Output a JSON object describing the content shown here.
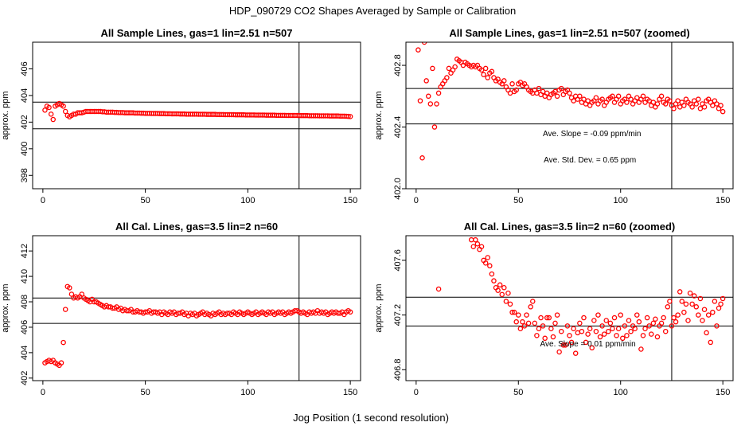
{
  "figure": {
    "title": "HDP_090729  CO2 Shapes Averaged by Sample or Calibration",
    "xlabel": "Jog Position (1 second resolution)"
  },
  "colors": {
    "points": "#ff0000",
    "lines": "#000000"
  },
  "chart_data": [
    {
      "type": "scatter",
      "title": "All Sample Lines, gas=1 lin=2.51 n=507",
      "xlabel": "",
      "ylabel": "approx. ppm",
      "xlim": [
        -5,
        155
      ],
      "ylim": [
        397,
        408
      ],
      "xticks": [
        0,
        50,
        100,
        150
      ],
      "yticks": [
        398,
        400,
        402,
        404,
        406
      ],
      "hlines": [
        403.5,
        401.5
      ],
      "vline": 125,
      "annotations": [],
      "series": [
        {
          "x_start": 1,
          "x_step": 1,
          "y": [
            402.9,
            403.2,
            403.1,
            402.6,
            402.2,
            403.2,
            403.3,
            403.4,
            403.3,
            403.2,
            402.8,
            402.5,
            402.4,
            402.5,
            402.6,
            402.6,
            402.7,
            402.7,
            402.7,
            402.75,
            402.8,
            402.8,
            402.8,
            402.8,
            402.8,
            402.8,
            402.8,
            402.8,
            402.78,
            402.78,
            402.75,
            402.75,
            402.75,
            402.75,
            402.73,
            402.73,
            402.72,
            402.72,
            402.72,
            402.7,
            402.7,
            402.7,
            402.7,
            402.7,
            402.68,
            402.68,
            402.68,
            402.67,
            402.67,
            402.66,
            402.66,
            402.66,
            402.65,
            402.65,
            402.65,
            402.65,
            402.64,
            402.64,
            402.64,
            402.63,
            402.63,
            402.63,
            402.62,
            402.62,
            402.62,
            402.62,
            402.61,
            402.61,
            402.61,
            402.6,
            402.6,
            402.6,
            402.6,
            402.6,
            402.6,
            402.59,
            402.59,
            402.59,
            402.59,
            402.58,
            402.58,
            402.58,
            402.58,
            402.58,
            402.57,
            402.57,
            402.57,
            402.57,
            402.56,
            402.56,
            402.56,
            402.56,
            402.56,
            402.55,
            402.55,
            402.55,
            402.55,
            402.55,
            402.54,
            402.54,
            402.54,
            402.54,
            402.54,
            402.53,
            402.53,
            402.53,
            402.53,
            402.53,
            402.52,
            402.52,
            402.52,
            402.52,
            402.52,
            402.51,
            402.51,
            402.51,
            402.51,
            402.51,
            402.5,
            402.5,
            402.5,
            402.5,
            402.5,
            402.5,
            402.49,
            402.49,
            402.49,
            402.49,
            402.49,
            402.48,
            402.48,
            402.48,
            402.48,
            402.48,
            402.47,
            402.47,
            402.47,
            402.47,
            402.47,
            402.46,
            402.46,
            402.46,
            402.46,
            402.46,
            402.45,
            402.45,
            402.45,
            402.44,
            402.43,
            402.42
          ]
        }
      ]
    },
    {
      "type": "scatter",
      "title": "All Sample Lines, gas=1 lin=2.51 n=507 (zoomed)",
      "xlabel": "",
      "ylabel": "approx. ppm",
      "xlim": [
        -5,
        155
      ],
      "ylim": [
        402.0,
        402.95
      ],
      "xticks": [
        0,
        50,
        100,
        150
      ],
      "yticks": [
        402.0,
        402.4,
        402.8
      ],
      "hlines": [
        402.65,
        402.42
      ],
      "vline": 125,
      "annotations": [
        {
          "text": "Ave. Slope =  -0.09  ppm/min",
          "x": 86,
          "y": 402.34
        },
        {
          "text": "Ave. Std. Dev. =  0.65  ppm",
          "x": 85,
          "y": 402.17
        }
      ],
      "series": [
        {
          "x_start": 1,
          "x_step": 1,
          "y": [
            402.9,
            402.57,
            402.2,
            402.95,
            402.7,
            402.6,
            402.55,
            402.78,
            402.4,
            402.55,
            402.62,
            402.66,
            402.68,
            402.7,
            402.72,
            402.78,
            402.75,
            402.77,
            402.79,
            402.84,
            402.83,
            402.82,
            402.8,
            402.82,
            402.81,
            402.8,
            402.79,
            402.8,
            402.79,
            402.8,
            402.78,
            402.77,
            402.74,
            402.78,
            402.72,
            402.75,
            402.76,
            402.72,
            402.7,
            402.71,
            402.69,
            402.68,
            402.7,
            402.66,
            402.64,
            402.62,
            402.68,
            402.63,
            402.64,
            402.68,
            402.69,
            402.67,
            402.68,
            402.66,
            402.64,
            402.63,
            402.62,
            402.64,
            402.62,
            402.65,
            402.61,
            402.63,
            402.6,
            402.62,
            402.59,
            402.61,
            402.62,
            402.63,
            402.6,
            402.64,
            402.65,
            402.61,
            402.63,
            402.64,
            402.62,
            402.59,
            402.57,
            402.6,
            402.58,
            402.6,
            402.56,
            402.58,
            402.55,
            402.57,
            402.54,
            402.56,
            402.57,
            402.59,
            402.55,
            402.57,
            402.58,
            402.54,
            402.56,
            402.58,
            402.59,
            402.6,
            402.56,
            402.58,
            402.6,
            402.55,
            402.57,
            402.58,
            402.56,
            402.6,
            402.58,
            402.55,
            402.57,
            402.59,
            402.56,
            402.58,
            402.6,
            402.56,
            402.58,
            402.57,
            402.54,
            402.56,
            402.53,
            402.55,
            402.58,
            402.6,
            402.56,
            402.55,
            402.58,
            402.57,
            402.54,
            402.52,
            402.55,
            402.57,
            402.53,
            402.56,
            402.54,
            402.58,
            402.56,
            402.55,
            402.53,
            402.57,
            402.55,
            402.58,
            402.52,
            402.55,
            402.53,
            402.57,
            402.58,
            402.56,
            402.54,
            402.57,
            402.55,
            402.52,
            402.54,
            402.5
          ]
        }
      ]
    },
    {
      "type": "scatter",
      "title": "All Cal. Lines, gas=3.5 lin=2 n=60",
      "xlabel": "",
      "ylabel": "approx. ppm",
      "xlim": [
        -5,
        155
      ],
      "ylim": [
        401.8,
        413.2
      ],
      "xticks": [
        0,
        50,
        100,
        150
      ],
      "yticks": [
        402,
        404,
        406,
        408,
        410,
        412
      ],
      "hlines": [
        408.3,
        406.3
      ],
      "vline": 125,
      "annotations": [],
      "series": [
        {
          "x_start": 1,
          "x_step": 1,
          "y": [
            403.2,
            403.3,
            403.4,
            403.3,
            403.4,
            403.2,
            403.1,
            403.0,
            403.2,
            404.8,
            407.4,
            409.2,
            409.1,
            408.6,
            408.3,
            408.4,
            408.3,
            408.4,
            408.6,
            408.3,
            408.2,
            408.1,
            408.0,
            408.2,
            408.0,
            408.0,
            407.9,
            407.8,
            407.7,
            407.6,
            407.7,
            407.6,
            407.6,
            407.5,
            407.5,
            407.6,
            407.4,
            407.5,
            407.3,
            407.4,
            407.3,
            407.3,
            407.4,
            407.2,
            407.2,
            407.3,
            407.2,
            407.2,
            407.1,
            407.2,
            407.2,
            407.3,
            407.1,
            407.2,
            407.2,
            407.1,
            407.2,
            407.0,
            407.2,
            407.1,
            407.0,
            407.2,
            407.1,
            407.2,
            407.0,
            407.1,
            407.1,
            407.2,
            407.0,
            407.1,
            406.9,
            407.1,
            407.0,
            407.1,
            406.9,
            407.0,
            407.1,
            407.2,
            407.0,
            407.1,
            407.0,
            406.9,
            407.1,
            407.0,
            407.1,
            407.2,
            407.0,
            407.1,
            407.0,
            407.1,
            407.1,
            407.0,
            407.2,
            407.1,
            407.0,
            407.2,
            407.1,
            407.0,
            407.1,
            407.2,
            407.1,
            407.0,
            407.1,
            407.2,
            407.0,
            407.1,
            407.2,
            407.1,
            407.0,
            407.2,
            407.1,
            407.2,
            407.0,
            407.1,
            407.2,
            407.1,
            407.2,
            407.0,
            407.1,
            407.2,
            407.1,
            407.2,
            407.3,
            407.3,
            407.2,
            407.1,
            407.2,
            407.1,
            407.0,
            407.2,
            407.1,
            407.2,
            407.1,
            407.3,
            407.1,
            407.2,
            407.1,
            407.2,
            407.0,
            407.1,
            407.2,
            407.1,
            407.2,
            407.1,
            407.1,
            407.2,
            407.0,
            407.2,
            407.3,
            407.2
          ]
        }
      ]
    },
    {
      "type": "scatter",
      "title": "All Cal. Lines, gas=3.5 lin=2 n=60 (zoomed)",
      "xlabel": "",
      "ylabel": "approx. ppm",
      "xlim": [
        -5,
        155
      ],
      "ylim": [
        406.72,
        407.78
      ],
      "xticks": [
        0,
        50,
        100,
        150
      ],
      "yticks": [
        406.8,
        407.2,
        407.6
      ],
      "hlines": [
        407.33,
        407.12
      ],
      "vline": 125,
      "annotations": [
        {
          "text": "Ave. Slope =  0.01  ppm/min",
          "x": 84,
          "y": 406.97
        }
      ],
      "points": [
        [
          11,
          407.39
        ],
        [
          27,
          407.75
        ],
        [
          28,
          407.7
        ],
        [
          29,
          407.75
        ],
        [
          30,
          407.72
        ],
        [
          31,
          407.68
        ],
        [
          32,
          407.7
        ],
        [
          33,
          407.6
        ],
        [
          34,
          407.58
        ],
        [
          35,
          407.62
        ],
        [
          36,
          407.56
        ],
        [
          37,
          407.5
        ],
        [
          38,
          407.45
        ],
        [
          39,
          407.4
        ],
        [
          40,
          407.38
        ],
        [
          41,
          407.42
        ],
        [
          42,
          407.35
        ],
        [
          43,
          407.4
        ],
        [
          44,
          407.3
        ],
        [
          45,
          407.36
        ],
        [
          46,
          407.28
        ],
        [
          47,
          407.22
        ],
        [
          48,
          407.22
        ],
        [
          49,
          407.15
        ],
        [
          50,
          407.2
        ],
        [
          51,
          407.1
        ],
        [
          52,
          407.15
        ],
        [
          53,
          407.12
        ],
        [
          54,
          407.2
        ],
        [
          55,
          407.14
        ],
        [
          56,
          407.26
        ],
        [
          57,
          407.3
        ],
        [
          58,
          407.14
        ],
        [
          59,
          407.05
        ],
        [
          60,
          407.1
        ],
        [
          61,
          407.18
        ],
        [
          62,
          407.12
        ],
        [
          63,
          407.03
        ],
        [
          64,
          407.18
        ],
        [
          65,
          407.18
        ],
        [
          66,
          407.1
        ],
        [
          67,
          407.04
        ],
        [
          68,
          407.14
        ],
        [
          69,
          407.2
        ],
        [
          70,
          406.93
        ],
        [
          71,
          407.08
        ],
        [
          72,
          406.98
        ],
        [
          73,
          406.98
        ],
        [
          74,
          407.12
        ],
        [
          75,
          407.05
        ],
        [
          76,
          407.0
        ],
        [
          77,
          407.1
        ],
        [
          78,
          406.92
        ],
        [
          79,
          407.07
        ],
        [
          80,
          407.14
        ],
        [
          81,
          407.08
        ],
        [
          82,
          407.18
        ],
        [
          83,
          407.0
        ],
        [
          84,
          407.06
        ],
        [
          85,
          407.1
        ],
        [
          86,
          406.96
        ],
        [
          87,
          407.16
        ],
        [
          88,
          407.08
        ],
        [
          89,
          407.2
        ],
        [
          90,
          407.04
        ],
        [
          91,
          407.12
        ],
        [
          92,
          407.06
        ],
        [
          93,
          407.16
        ],
        [
          94,
          407.08
        ],
        [
          95,
          407.14
        ],
        [
          96,
          407.1
        ],
        [
          97,
          407.18
        ],
        [
          98,
          407.05
        ],
        [
          99,
          407.1
        ],
        [
          100,
          407.2
        ],
        [
          101,
          407.03
        ],
        [
          102,
          407.12
        ],
        [
          103,
          407.05
        ],
        [
          104,
          407.16
        ],
        [
          105,
          407.08
        ],
        [
          106,
          407.12
        ],
        [
          107,
          407.1
        ],
        [
          108,
          407.2
        ],
        [
          109,
          407.15
        ],
        [
          110,
          406.95
        ],
        [
          111,
          407.05
        ],
        [
          112,
          407.1
        ],
        [
          113,
          407.18
        ],
        [
          114,
          407.12
        ],
        [
          115,
          407.06
        ],
        [
          116,
          407.14
        ],
        [
          117,
          407.17
        ],
        [
          118,
          407.04
        ],
        [
          119,
          407.12
        ],
        [
          120,
          407.14
        ],
        [
          121,
          407.18
        ],
        [
          122,
          407.08
        ],
        [
          123,
          407.26
        ],
        [
          124,
          407.3
        ],
        [
          125,
          407.12
        ],
        [
          126,
          407.18
        ],
        [
          127,
          407.15
        ],
        [
          128,
          407.2
        ],
        [
          129,
          407.37
        ],
        [
          130,
          407.3
        ],
        [
          131,
          407.22
        ],
        [
          132,
          407.28
        ],
        [
          133,
          407.16
        ],
        [
          134,
          407.36
        ],
        [
          135,
          407.28
        ],
        [
          136,
          407.34
        ],
        [
          137,
          407.26
        ],
        [
          138,
          407.2
        ],
        [
          139,
          407.32
        ],
        [
          140,
          407.16
        ],
        [
          141,
          407.24
        ],
        [
          142,
          407.07
        ],
        [
          143,
          407.2
        ],
        [
          144,
          407.0
        ],
        [
          145,
          407.22
        ],
        [
          146,
          407.3
        ],
        [
          147,
          407.12
        ],
        [
          148,
          407.25
        ],
        [
          149,
          407.28
        ],
        [
          150,
          407.32
        ]
      ]
    }
  ]
}
